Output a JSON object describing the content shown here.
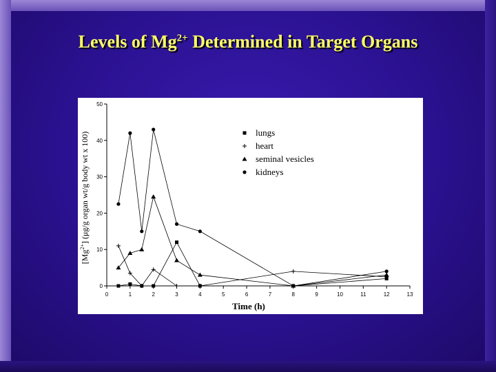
{
  "slide": {
    "title_pre": "Levels of Mg",
    "title_sup": "2+",
    "title_post": " Determined in Target Organs"
  },
  "chart_data": {
    "type": "line",
    "xlabel": "Time (h)",
    "ylabel_parts": [
      "[Mg",
      "2+",
      "] (μg/g organ wt/g body wt x 100)"
    ],
    "xlim": [
      0,
      13
    ],
    "ylim": [
      0,
      50
    ],
    "xticks": [
      0,
      1,
      2,
      3,
      4,
      5,
      6,
      7,
      8,
      9,
      10,
      11,
      12,
      13
    ],
    "yticks": [
      0,
      10,
      20,
      30,
      40,
      50
    ],
    "grid": false,
    "legend_position": "top-right",
    "series": [
      {
        "name": "lungs",
        "marker": "square",
        "points": [
          [
            0.5,
            0
          ],
          [
            1,
            0.5
          ],
          [
            1.5,
            0
          ],
          [
            2,
            0
          ],
          [
            3,
            12
          ],
          [
            4,
            0
          ],
          [
            8,
            0
          ],
          [
            12,
            2
          ]
        ]
      },
      {
        "name": "heart",
        "marker": "plus",
        "points": [
          [
            0.5,
            11
          ],
          [
            1,
            3.5
          ],
          [
            1.5,
            0
          ],
          [
            2,
            4.5
          ],
          [
            3,
            0
          ],
          [
            4,
            0
          ],
          [
            8,
            4
          ],
          [
            12,
            2.5
          ]
        ]
      },
      {
        "name": "seminal vesicles",
        "marker": "triangle",
        "points": [
          [
            0.5,
            5
          ],
          [
            1,
            9
          ],
          [
            1.5,
            10
          ],
          [
            2,
            24.5
          ],
          [
            3,
            7
          ],
          [
            4,
            3
          ],
          [
            8,
            0
          ],
          [
            12,
            3
          ]
        ]
      },
      {
        "name": "kidneys",
        "marker": "circle",
        "points": [
          [
            0.5,
            22.5
          ],
          [
            1,
            42
          ],
          [
            1.5,
            15
          ],
          [
            2,
            43
          ],
          [
            3,
            17
          ],
          [
            4,
            15
          ],
          [
            8,
            0
          ],
          [
            12,
            4
          ]
        ]
      }
    ]
  }
}
